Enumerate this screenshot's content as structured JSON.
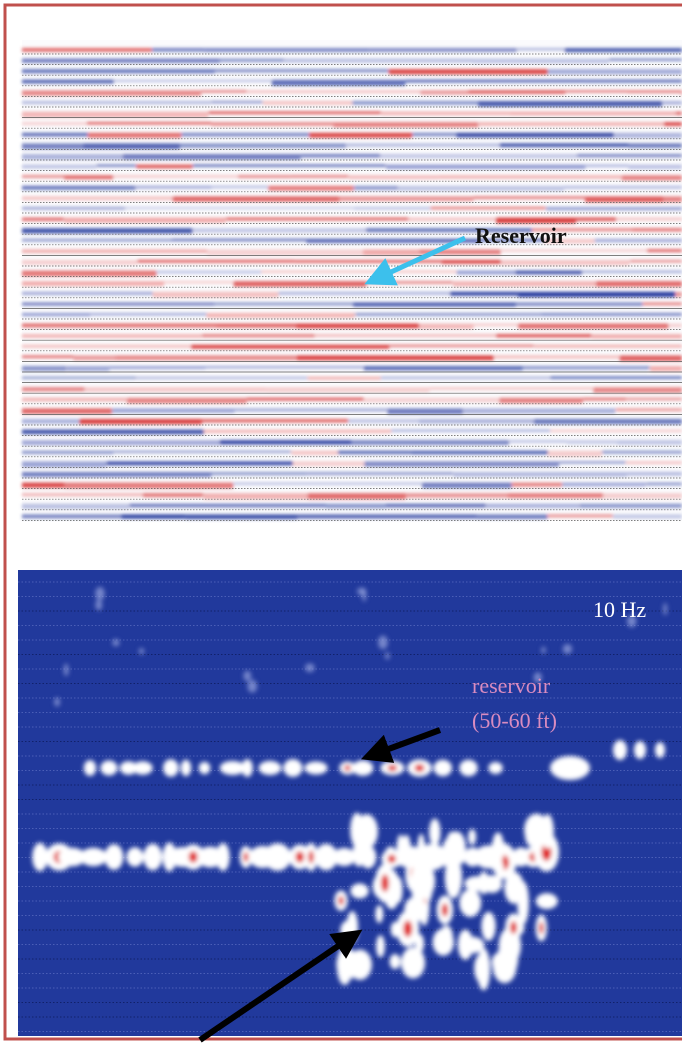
{
  "top_panel": {
    "label": "Reservoir"
  },
  "bottom_panel": {
    "frequency": "10 Hz",
    "label": "reservoir",
    "sublabel": "(50-60 ft)"
  }
}
